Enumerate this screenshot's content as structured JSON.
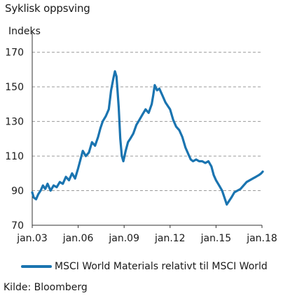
{
  "header": {
    "title": "Syklisk oppsving",
    "unit": "Indeks"
  },
  "source": "Kilde: Bloomberg",
  "colors": {
    "series": "#1a74b0",
    "grid": "#9a9a9a",
    "axis": "#333333"
  },
  "chart_data": {
    "type": "line",
    "title": "Syklisk oppsving",
    "ylabel": "Indeks",
    "xlabel": "",
    "xlim": [
      2003.0,
      2018.0
    ],
    "ylim": [
      70,
      180
    ],
    "yticks": [
      70,
      90,
      110,
      130,
      150,
      170
    ],
    "xticks": [
      {
        "value": 2003.0,
        "label": "jan.03"
      },
      {
        "value": 2006.0,
        "label": "jan.06"
      },
      {
        "value": 2009.0,
        "label": "jan.09"
      },
      {
        "value": 2012.0,
        "label": "jan.12"
      },
      {
        "value": 2015.0,
        "label": "jan.15"
      },
      {
        "value": 2018.0,
        "label": "jan.18"
      }
    ],
    "grid": "horizontal dashed",
    "legend_position": "bottom",
    "series": [
      {
        "name": "MSCI World Materials relativt til MSCI World",
        "points": [
          [
            2003.0,
            89
          ],
          [
            2003.1,
            86
          ],
          [
            2003.25,
            85
          ],
          [
            2003.4,
            88
          ],
          [
            2003.55,
            90
          ],
          [
            2003.7,
            93
          ],
          [
            2003.85,
            91
          ],
          [
            2004.0,
            94
          ],
          [
            2004.2,
            90
          ],
          [
            2004.4,
            93
          ],
          [
            2004.6,
            92
          ],
          [
            2004.8,
            95
          ],
          [
            2005.0,
            94
          ],
          [
            2005.2,
            98
          ],
          [
            2005.4,
            96
          ],
          [
            2005.6,
            100
          ],
          [
            2005.8,
            97
          ],
          [
            2006.0,
            103
          ],
          [
            2006.15,
            108
          ],
          [
            2006.3,
            113
          ],
          [
            2006.5,
            110
          ],
          [
            2006.7,
            112
          ],
          [
            2006.9,
            118
          ],
          [
            2007.1,
            116
          ],
          [
            2007.3,
            121
          ],
          [
            2007.45,
            126
          ],
          [
            2007.6,
            130
          ],
          [
            2007.8,
            133
          ],
          [
            2008.0,
            137
          ],
          [
            2008.15,
            148
          ],
          [
            2008.3,
            155
          ],
          [
            2008.4,
            159
          ],
          [
            2008.5,
            156
          ],
          [
            2008.55,
            150
          ],
          [
            2008.65,
            138
          ],
          [
            2008.75,
            120
          ],
          [
            2008.85,
            110
          ],
          [
            2008.95,
            107
          ],
          [
            2009.1,
            113
          ],
          [
            2009.25,
            118
          ],
          [
            2009.4,
            120
          ],
          [
            2009.6,
            123
          ],
          [
            2009.8,
            128
          ],
          [
            2010.0,
            131
          ],
          [
            2010.2,
            134
          ],
          [
            2010.4,
            137
          ],
          [
            2010.6,
            135
          ],
          [
            2010.8,
            140
          ],
          [
            2010.9,
            145
          ],
          [
            2011.0,
            151
          ],
          [
            2011.15,
            148
          ],
          [
            2011.3,
            149
          ],
          [
            2011.5,
            145
          ],
          [
            2011.7,
            141
          ],
          [
            2011.85,
            139
          ],
          [
            2012.0,
            137
          ],
          [
            2012.2,
            131
          ],
          [
            2012.4,
            127
          ],
          [
            2012.6,
            125
          ],
          [
            2012.8,
            121
          ],
          [
            2013.0,
            115
          ],
          [
            2013.2,
            111
          ],
          [
            2013.35,
            108
          ],
          [
            2013.5,
            107
          ],
          [
            2013.7,
            108
          ],
          [
            2013.9,
            107
          ],
          [
            2014.1,
            107
          ],
          [
            2014.3,
            106
          ],
          [
            2014.5,
            107
          ],
          [
            2014.7,
            104
          ],
          [
            2014.85,
            99
          ],
          [
            2015.0,
            96
          ],
          [
            2015.2,
            93
          ],
          [
            2015.4,
            90
          ],
          [
            2015.55,
            86
          ],
          [
            2015.7,
            82
          ],
          [
            2015.85,
            84
          ],
          [
            2016.0,
            86
          ],
          [
            2016.2,
            89
          ],
          [
            2016.4,
            90
          ],
          [
            2016.6,
            91
          ],
          [
            2016.8,
            93
          ],
          [
            2017.0,
            95
          ],
          [
            2017.2,
            96
          ],
          [
            2017.4,
            97
          ],
          [
            2017.6,
            98
          ],
          [
            2017.8,
            99
          ],
          [
            2017.95,
            100
          ],
          [
            2018.05,
            101
          ]
        ]
      }
    ]
  }
}
